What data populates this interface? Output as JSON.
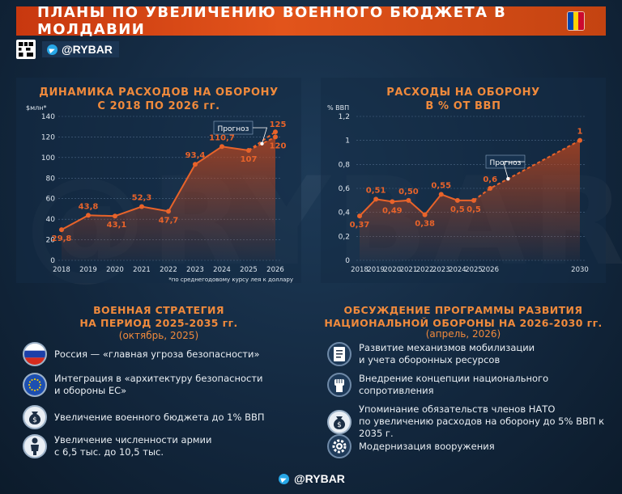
{
  "header": {
    "title": "ПЛАНЫ ПО УВЕЛИЧЕНИЮ ВОЕННОГО БЮДЖЕТА В МОЛДАВИИ"
  },
  "brand": {
    "handle": "@RYBAR",
    "watermark": "@RYBAR"
  },
  "flag_colors": [
    "#0046ae",
    "#ffd200",
    "#cc092f"
  ],
  "accent": "#e8632a",
  "chart_data": [
    {
      "type": "line",
      "title": "ДИНАМИКА РАСХОДОВ НА ОБОРОНУ\nС 2018 ПО 2026 гг.",
      "ylabel": "$млн*",
      "x": [
        "2018",
        "2019",
        "2020",
        "2021",
        "2022",
        "2023",
        "2024",
        "2025",
        "2026"
      ],
      "series": [
        {
          "values": [
            29.8,
            43.8,
            43.1,
            52.3,
            47.7,
            93.4,
            110.7,
            107,
            120
          ],
          "labels": [
            "29,8",
            "43,8",
            "43,1",
            "52,3",
            "47,7",
            "93,4",
            "110,7",
            "107",
            "120"
          ]
        },
        {
          "values": [
            null,
            null,
            null,
            null,
            null,
            null,
            null,
            107,
            125
          ],
          "labels": [
            "",
            "",
            "",
            "",
            "",
            "",
            "",
            "",
            "125"
          ]
        }
      ],
      "yticks": [
        "0",
        "20",
        "40",
        "60",
        "80",
        "100",
        "120",
        "140"
      ],
      "ylim": [
        0,
        140
      ],
      "annotation": "Прогноз",
      "footnote": "*по среднегодовому курсу лея к доллару"
    },
    {
      "type": "line",
      "title": "РАСХОДЫ НА ОБОРОНУ\nВ % ОТ ВВП",
      "ylabel": "% ВВП",
      "x": [
        2018,
        2019,
        2020,
        2021,
        2022,
        2023,
        2024,
        2025,
        2026,
        2030
      ],
      "xticks": [
        "2018",
        "2019",
        "2020",
        "2021",
        "2022",
        "2023",
        "2024",
        "2025",
        "2026",
        "2030"
      ],
      "values": [
        0.37,
        0.51,
        0.49,
        0.5,
        0.38,
        0.55,
        0.5,
        0.5,
        0.6,
        1
      ],
      "labels": [
        "0,37",
        "0,51",
        "0,49",
        "0,50",
        "0,38",
        "0,55",
        "0,5",
        "0,5",
        "0,6",
        "1"
      ],
      "forecast_from": 2025,
      "yticks": [
        "0",
        "0,2",
        "0,4",
        "0,6",
        "0,8",
        "1",
        "1,2"
      ],
      "ylim": [
        0,
        1.2
      ],
      "annotation": "Прогноз"
    }
  ],
  "strategy": {
    "title": "ВОЕННАЯ СТРАТЕГИЯ\nНА ПЕРИОД 2025-2035 гг.",
    "subtitle": "(октябрь, 2025)",
    "items": [
      {
        "icon": "russia-flag-icon",
        "text": "Россия — «главная угроза безопасности»"
      },
      {
        "icon": "eu-flag-icon",
        "text": "Интеграция в «архитектуру безопасности\nи обороны ЕС»"
      },
      {
        "icon": "money-bag-icon",
        "text": "Увеличение военного бюджета до 1% ВВП"
      },
      {
        "icon": "soldier-icon",
        "text": "Увеличение численности армии\nс 6,5 тыс. до 10,5 тыс."
      }
    ]
  },
  "program": {
    "title": "ОБСУЖДЕНИЕ ПРОГРАММЫ РАЗВИТИЯ\nНАЦИОНАЛЬНОЙ ОБОРОНЫ НА 2026-2030 гг.",
    "subtitle": "(апрель, 2026)",
    "items": [
      {
        "icon": "document-icon",
        "text": "Развитие механизмов мобилизации\nи учета оборонных ресурсов"
      },
      {
        "icon": "fist-icon",
        "text": "Внедрение концепции национального сопротивления"
      },
      {
        "icon": "money-bag-icon",
        "text": "Упоминание обязательств членов НАТО\nпо увеличению расходов на оборону до 5% ВВП к 2035 г."
      },
      {
        "icon": "gear-icon",
        "text": "Модернизация вооружения"
      }
    ]
  }
}
